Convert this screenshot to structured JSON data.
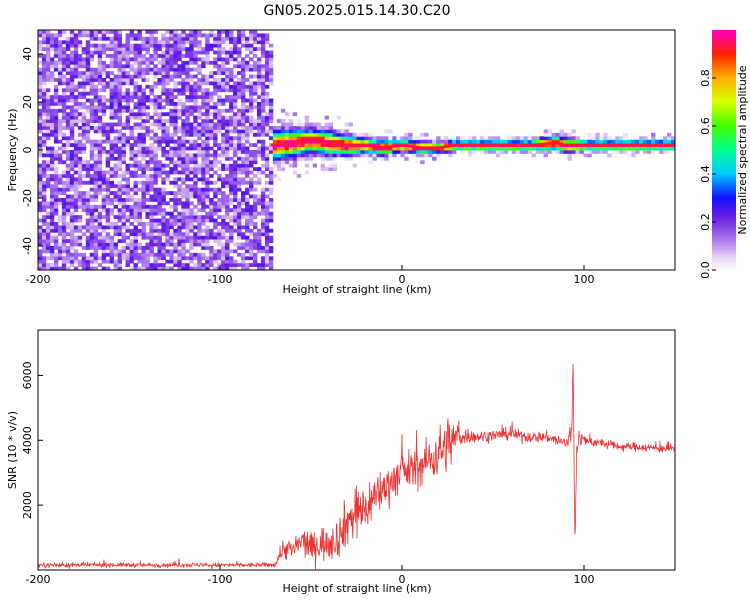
{
  "title": "GN05.2025.015.14.30.C20",
  "colors": {
    "snr_line": "#ee3333",
    "axis": "#000000"
  },
  "chart_data": [
    {
      "type": "heatmap",
      "name": "spectrogram",
      "xlabel": "Height of straight line (km)",
      "ylabel": "Frequency (Hz)",
      "xlim": [
        -200,
        150
      ],
      "ylim": [
        -50,
        50
      ],
      "xticks": [
        -200,
        -100,
        0,
        100
      ],
      "yticks": [
        -40,
        -20,
        0,
        20,
        40
      ],
      "colorbar": {
        "label": "Normalized spectral amplitude",
        "range": [
          0,
          1
        ],
        "ticks": [
          0.0,
          0.2,
          0.4,
          0.6,
          0.8
        ],
        "colormap": "rainbow (magenta-blue-cyan-green-yellow-red)"
      },
      "regions": [
        {
          "x_range": [
            -200,
            -72
          ],
          "frequency_range": [
            -50,
            50
          ],
          "description": "noise speckle",
          "amplitude_range": [
            0.0,
            0.25
          ]
        },
        {
          "x_range": [
            -72,
            150
          ],
          "frequency_center": 2,
          "description": "narrow signal band",
          "amplitude_range": [
            0.3,
            1.0
          ]
        }
      ],
      "band": {
        "x": [
          -72,
          -60,
          -50,
          -40,
          -30,
          -20,
          -10,
          0,
          10,
          20,
          30,
          50,
          70,
          85,
          90,
          100,
          120,
          150
        ],
        "center_hz": [
          2,
          3,
          4,
          3,
          2,
          2,
          1,
          2,
          1,
          1,
          2,
          2,
          2,
          3,
          2,
          2,
          2,
          2
        ],
        "half_width_hz": [
          6,
          6,
          5,
          5,
          4,
          3,
          3,
          2.5,
          2.5,
          2,
          2,
          2,
          2,
          3,
          3,
          2,
          2,
          2
        ]
      }
    },
    {
      "type": "line",
      "name": "snr",
      "xlabel": "Height of straight line (km)",
      "ylabel": "SNR (10 * v/v)",
      "xlim": [
        -200,
        150
      ],
      "ylim": [
        0,
        7400
      ],
      "xticks": [
        -200,
        -100,
        0,
        100
      ],
      "yticks": [
        2000,
        4000,
        6000
      ],
      "series": [
        {
          "x": [
            -200,
            -180,
            -160,
            -140,
            -120,
            -100,
            -80,
            -70,
            -65,
            -60,
            -55,
            -50,
            -45,
            -40,
            -35,
            -30,
            -25,
            -20,
            -15,
            -10,
            -5,
            0,
            5,
            10,
            15,
            20,
            25,
            28,
            30,
            35,
            40,
            50,
            60,
            70,
            80,
            85,
            90,
            93,
            94,
            95,
            96,
            97,
            100,
            110,
            120,
            130,
            140,
            150
          ],
          "y": [
            150,
            150,
            160,
            150,
            160,
            150,
            150,
            160,
            700,
            600,
            900,
            700,
            800,
            900,
            1000,
            1500,
            1800,
            1900,
            2300,
            2500,
            2800,
            3000,
            3100,
            3200,
            3400,
            3600,
            3900,
            4000,
            4100,
            4150,
            4100,
            4150,
            4200,
            4100,
            4100,
            4000,
            3900,
            4200,
            5800,
            1000,
            3700,
            4100,
            4000,
            3900,
            3800,
            3800,
            3750,
            3750
          ],
          "noise": [
            80,
            80,
            80,
            80,
            80,
            80,
            80,
            80,
            400,
            400,
            500,
            500,
            600,
            700,
            700,
            900,
            900,
            900,
            800,
            700,
            700,
            700,
            700,
            700,
            800,
            900,
            1000,
            800,
            500,
            300,
            200,
            200,
            200,
            200,
            200,
            200,
            300,
            500,
            1000,
            1000,
            500,
            300,
            200,
            150,
            150,
            150,
            150,
            150
          ]
        }
      ]
    }
  ]
}
